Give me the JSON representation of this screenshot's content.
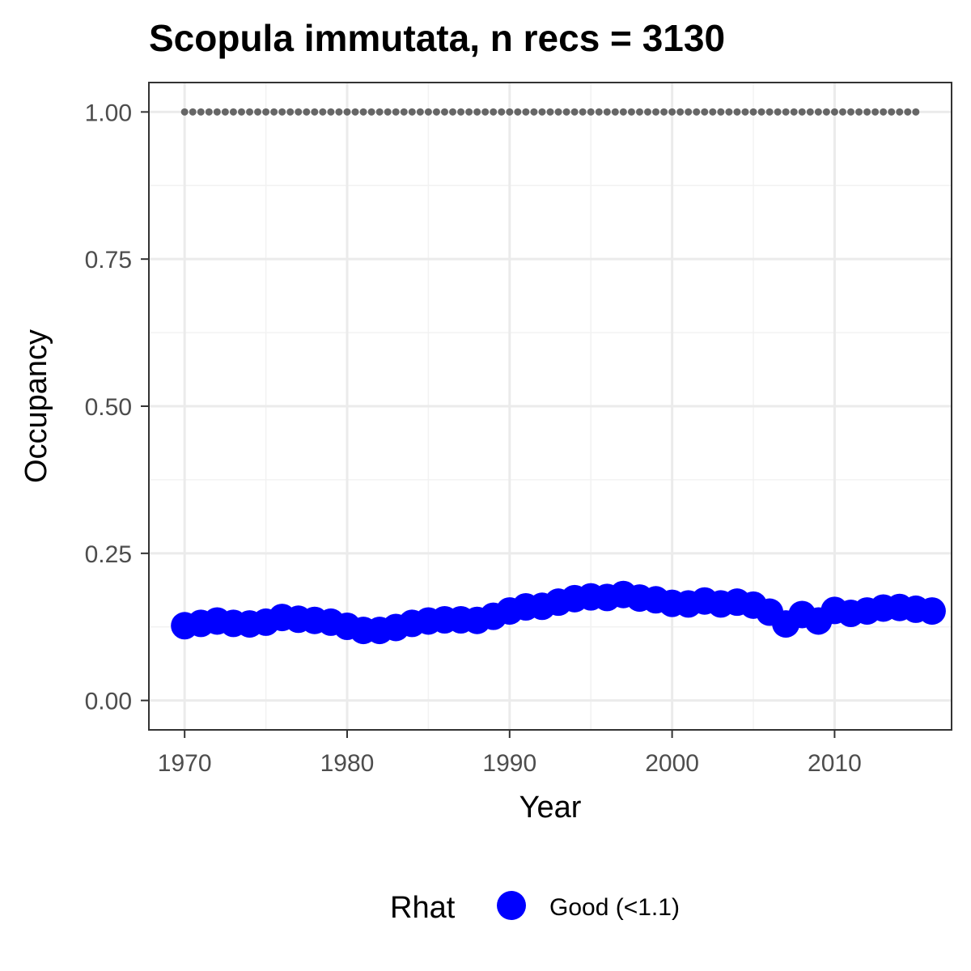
{
  "chart_data": {
    "type": "line",
    "title": "Scopula immutata, n recs = 3130",
    "xlabel": "Year",
    "ylabel": "Occupancy",
    "xlim": [
      1967.8,
      2017.2
    ],
    "ylim": [
      -0.05,
      1.05
    ],
    "x_ticks": [
      1970,
      1980,
      1990,
      2000,
      2010
    ],
    "x_tick_labels": [
      "1970",
      "1980",
      "1990",
      "2000",
      "2010"
    ],
    "y_ticks": [
      0,
      0.25,
      0.5,
      0.75,
      1.0
    ],
    "y_tick_labels": [
      "0.00",
      "0.25",
      "0.50",
      "0.75",
      "1.00"
    ],
    "grid": true,
    "legend": {
      "position": "bottom",
      "title": "Rhat",
      "entries": [
        {
          "label": "Good (<1.1)",
          "color": "#0000ff"
        }
      ]
    },
    "series": [
      {
        "name": "Good (<1.1)",
        "color": "#0000ff",
        "x": [
          1970,
          1971,
          1972,
          1973,
          1974,
          1975,
          1976,
          1977,
          1978,
          1979,
          1980,
          1981,
          1982,
          1983,
          1984,
          1985,
          1986,
          1987,
          1988,
          1989,
          1990,
          1991,
          1992,
          1993,
          1994,
          1995,
          1996,
          1997,
          1998,
          1999,
          2000,
          2001,
          2002,
          2003,
          2004,
          2005,
          2006,
          2007,
          2008,
          2009,
          2010,
          2011,
          2012,
          2013,
          2014,
          2015,
          2016
        ],
        "values": [
          0.127,
          0.131,
          0.135,
          0.131,
          0.13,
          0.133,
          0.141,
          0.138,
          0.136,
          0.133,
          0.126,
          0.119,
          0.119,
          0.124,
          0.131,
          0.135,
          0.137,
          0.137,
          0.136,
          0.143,
          0.152,
          0.159,
          0.16,
          0.167,
          0.173,
          0.176,
          0.175,
          0.18,
          0.174,
          0.171,
          0.165,
          0.164,
          0.169,
          0.164,
          0.167,
          0.162,
          0.15,
          0.13,
          0.146,
          0.135,
          0.153,
          0.148,
          0.152,
          0.157,
          0.158,
          0.155,
          0.152
        ],
        "lower": [
          0.108,
          0.113,
          0.118,
          0.116,
          0.115,
          0.118,
          0.126,
          0.124,
          0.122,
          0.119,
          0.113,
          0.107,
          0.107,
          0.112,
          0.119,
          0.123,
          0.125,
          0.125,
          0.124,
          0.131,
          0.139,
          0.146,
          0.147,
          0.154,
          0.16,
          0.163,
          0.162,
          0.166,
          0.16,
          0.158,
          0.152,
          0.151,
          0.156,
          0.151,
          0.154,
          0.149,
          0.138,
          0.119,
          0.134,
          0.123,
          0.141,
          0.136,
          0.14,
          0.145,
          0.146,
          0.143,
          0.139
        ],
        "upper": [
          0.146,
          0.15,
          0.153,
          0.147,
          0.145,
          0.148,
          0.156,
          0.152,
          0.15,
          0.147,
          0.14,
          0.132,
          0.132,
          0.137,
          0.143,
          0.147,
          0.149,
          0.149,
          0.148,
          0.156,
          0.165,
          0.172,
          0.173,
          0.18,
          0.186,
          0.189,
          0.188,
          0.194,
          0.188,
          0.184,
          0.178,
          0.177,
          0.182,
          0.177,
          0.18,
          0.175,
          0.163,
          0.142,
          0.158,
          0.148,
          0.166,
          0.161,
          0.165,
          0.17,
          0.171,
          0.168,
          0.166
        ]
      },
      {
        "name": "",
        "style": "dotted",
        "color": "#666666",
        "x": [
          1970,
          1971,
          1972,
          1973,
          1974,
          1975,
          1976,
          1977,
          1978,
          1979,
          1980,
          1981,
          1982,
          1983,
          1984,
          1985,
          1986,
          1987,
          1988,
          1989,
          1990,
          1991,
          1992,
          1993,
          1994,
          1995,
          1996,
          1997,
          1998,
          1999,
          2000,
          2001,
          2002,
          2003,
          2004,
          2005,
          2006,
          2007,
          2008,
          2009,
          2010,
          2011,
          2012,
          2013,
          2014,
          2015
        ],
        "values": [
          1,
          1,
          1,
          1,
          1,
          1,
          1,
          1,
          1,
          1,
          1,
          1,
          1,
          1,
          1,
          1,
          1,
          1,
          1,
          1,
          1,
          1,
          1,
          1,
          1,
          1,
          1,
          1,
          1,
          1,
          1,
          1,
          1,
          1,
          1,
          1,
          1,
          1,
          1,
          1,
          1,
          1,
          1,
          1,
          1,
          1
        ]
      }
    ]
  }
}
